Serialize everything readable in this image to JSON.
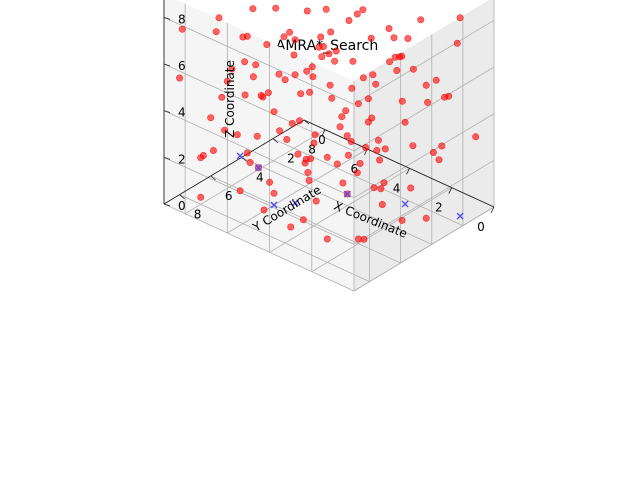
{
  "chart_data": {
    "type": "scatter",
    "title": "AMRA*_Search",
    "xlabel": "X Coordinate",
    "ylabel": "Y Coordinate",
    "zlabel": "Z Coordinate",
    "xlim": [
      0,
      9
    ],
    "ylim": [
      0,
      9
    ],
    "zlim": [
      0,
      9
    ],
    "xticks": [
      "0",
      "2",
      "4",
      "6",
      "8"
    ],
    "yticks": [
      "0",
      "2",
      "4",
      "6",
      "8"
    ],
    "zticks": [
      "0",
      "2",
      "4",
      "6",
      "8"
    ],
    "grid": true,
    "series": [
      {
        "marker": "circle",
        "color": "#ff0000",
        "points": [
          [
            1.0,
            1.0,
            7.0
          ],
          [
            2.0,
            1.0,
            5.0
          ],
          [
            3.0,
            0.5,
            8.5
          ],
          [
            4.0,
            1.0,
            6.0
          ],
          [
            5.0,
            1.0,
            4.0
          ],
          [
            6.0,
            1.0,
            3.0
          ],
          [
            7.0,
            1.0,
            5.0
          ],
          [
            8.0,
            1.0,
            2.0
          ],
          [
            1.0,
            2.0,
            3.0
          ],
          [
            2.0,
            2.0,
            8.0
          ],
          [
            3.0,
            2.0,
            6.0
          ],
          [
            4.0,
            2.0,
            2.0
          ],
          [
            5.0,
            2.0,
            7.0
          ],
          [
            6.0,
            2.0,
            5.0
          ],
          [
            7.0,
            2.0,
            1.0
          ],
          [
            8.0,
            2.0,
            4.0
          ],
          [
            1.0,
            3.0,
            6.0
          ],
          [
            2.0,
            3.0,
            4.0
          ],
          [
            3.0,
            3.0,
            1.0
          ],
          [
            4.0,
            3.0,
            8.0
          ],
          [
            5.0,
            3.0,
            3.0
          ],
          [
            6.0,
            3.0,
            6.0
          ],
          [
            7.0,
            3.0,
            2.0
          ],
          [
            8.0,
            3.0,
            7.0
          ],
          [
            1.0,
            4.0,
            2.0
          ],
          [
            2.0,
            4.0,
            7.0
          ],
          [
            3.0,
            4.0,
            5.0
          ],
          [
            4.0,
            4.0,
            3.0
          ],
          [
            5.0,
            4.0,
            8.0
          ],
          [
            6.0,
            4.0,
            1.0
          ],
          [
            7.0,
            4.0,
            6.0
          ],
          [
            8.0,
            4.0,
            3.0
          ],
          [
            1.0,
            5.0,
            8.0
          ],
          [
            2.0,
            5.0,
            2.0
          ],
          [
            3.0,
            5.0,
            7.0
          ],
          [
            4.0,
            5.0,
            5.0
          ],
          [
            5.0,
            5.0,
            2.0
          ],
          [
            6.0,
            5.0,
            7.0
          ],
          [
            7.0,
            5.0,
            4.0
          ],
          [
            8.0,
            5.0,
            1.0
          ],
          [
            1.0,
            6.0,
            4.0
          ],
          [
            2.0,
            6.0,
            6.0
          ],
          [
            3.0,
            6.0,
            3.0
          ],
          [
            4.0,
            6.0,
            1.0
          ],
          [
            5.0,
            6.0,
            6.0
          ],
          [
            6.0,
            6.0,
            4.0
          ],
          [
            7.0,
            6.0,
            8.0
          ],
          [
            8.0,
            6.0,
            5.0
          ],
          [
            1.0,
            7.0,
            1.0
          ],
          [
            2.0,
            7.0,
            3.0
          ],
          [
            3.0,
            7.0,
            8.0
          ],
          [
            4.0,
            7.0,
            6.0
          ],
          [
            5.0,
            7.0,
            4.0
          ],
          [
            6.0,
            7.0,
            2.0
          ],
          [
            7.0,
            7.0,
            3.0
          ],
          [
            8.0,
            7.0,
            7.0
          ],
          [
            1.0,
            8.0,
            5.0
          ],
          [
            2.0,
            8.0,
            1.0
          ],
          [
            3.0,
            8.0,
            4.0
          ],
          [
            4.0,
            8.0,
            7.0
          ],
          [
            5.0,
            8.0,
            1.0
          ],
          [
            6.0,
            8.0,
            8.0
          ],
          [
            7.0,
            8.0,
            5.0
          ],
          [
            8.0,
            8.0,
            2.0
          ],
          [
            0.5,
            0.5,
            3.0
          ],
          [
            0.5,
            2.5,
            5.5
          ],
          [
            0.5,
            4.5,
            7.5
          ],
          [
            0.5,
            6.5,
            2.5
          ],
          [
            0.5,
            8.5,
            6.0
          ],
          [
            2.5,
            0.5,
            1.5
          ],
          [
            2.5,
            2.5,
            4.5
          ],
          [
            2.5,
            4.5,
            8.0
          ],
          [
            2.5,
            6.5,
            5.0
          ],
          [
            2.5,
            8.5,
            3.5
          ],
          [
            4.5,
            0.5,
            7.5
          ],
          [
            4.5,
            2.5,
            1.0
          ],
          [
            4.5,
            4.5,
            6.5
          ],
          [
            4.5,
            6.5,
            3.0
          ],
          [
            4.5,
            8.5,
            8.5
          ],
          [
            6.5,
            0.5,
            5.5
          ],
          [
            6.5,
            2.5,
            8.0
          ],
          [
            6.5,
            4.5,
            2.0
          ],
          [
            6.5,
            6.5,
            6.0
          ],
          [
            6.5,
            8.5,
            4.0
          ],
          [
            8.5,
            0.5,
            2.5
          ],
          [
            8.5,
            2.5,
            6.0
          ],
          [
            8.5,
            4.5,
            4.5
          ],
          [
            8.5,
            6.5,
            1.5
          ],
          [
            8.5,
            8.5,
            7.5
          ],
          [
            1.5,
            1.5,
            2.0
          ],
          [
            1.5,
            3.5,
            8.0
          ],
          [
            1.5,
            5.5,
            4.0
          ],
          [
            1.5,
            7.5,
            6.5
          ],
          [
            3.5,
            1.5,
            5.0
          ],
          [
            3.5,
            3.5,
            2.5
          ],
          [
            3.5,
            5.5,
            7.0
          ],
          [
            3.5,
            7.5,
            1.0
          ],
          [
            5.5,
            1.5,
            8.0
          ],
          [
            5.5,
            3.5,
            6.0
          ],
          [
            5.5,
            5.5,
            3.5
          ],
          [
            5.5,
            7.5,
            5.5
          ],
          [
            7.5,
            1.5,
            3.5
          ],
          [
            7.5,
            3.5,
            7.5
          ],
          [
            7.5,
            5.5,
            1.0
          ],
          [
            7.5,
            7.5,
            8.0
          ],
          [
            0.2,
            4.0,
            6.0
          ],
          [
            0.2,
            7.0,
            3.5
          ],
          [
            9.0,
            3.0,
            0.5
          ],
          [
            9.0,
            6.0,
            2.5
          ],
          [
            6.0,
            9.0,
            6.5
          ],
          [
            3.0,
            9.0,
            1.5
          ],
          [
            5.0,
            0.2,
            0.5
          ],
          [
            7.0,
            0.2,
            7.0
          ],
          [
            2.0,
            0.2,
            4.0
          ],
          [
            4.0,
            4.0,
            0.5
          ],
          [
            6.0,
            6.0,
            0.5
          ],
          [
            2.0,
            6.0,
            0.2
          ],
          [
            8.0,
            8.0,
            0.3
          ],
          [
            5.0,
            2.0,
            0.2
          ],
          [
            1.5,
            8.5,
            8.0
          ],
          [
            7.5,
            8.5,
            2.5
          ],
          [
            4.5,
            1.5,
            4.0
          ],
          [
            3.0,
            7.5,
            4.5
          ],
          [
            6.0,
            3.5,
            4.5
          ],
          [
            2.5,
            5.0,
            6.5
          ],
          [
            7.0,
            6.5,
            4.5
          ],
          [
            8.5,
            1.5,
            8.5
          ],
          [
            0.5,
            1.5,
            8.5
          ],
          [
            4.0,
            9.0,
            3.0
          ],
          [
            5.5,
            4.5,
            1.0
          ],
          [
            6.5,
            7.5,
            1.0
          ],
          [
            1.0,
            3.0,
            0.3
          ],
          [
            2.0,
            2.5,
            2.8
          ],
          [
            3.5,
            6.5,
            8.0
          ],
          [
            8.0,
            5.0,
            6.0
          ],
          [
            7.0,
            2.5,
            6.5
          ],
          [
            3.0,
            4.0,
            4.0
          ],
          [
            5.0,
            6.0,
            7.5
          ],
          [
            9.0,
            8.0,
            5.0
          ],
          [
            0.3,
            5.5,
            1.5
          ],
          [
            4.0,
            0.5,
            5.0
          ],
          [
            6.5,
            5.0,
            5.0
          ],
          [
            2.0,
            8.0,
            4.5
          ],
          [
            8.0,
            2.0,
            7.5
          ],
          [
            5.5,
            8.0,
            6.5
          ],
          [
            3.5,
            2.0,
            7.0
          ],
          [
            1.0,
            6.5,
            6.0
          ]
        ]
      },
      {
        "marker": "x",
        "color": "#4f4ff5",
        "points": [
          [
            0.5,
            1.5,
            0.0
          ],
          [
            2.0,
            3.0,
            0.5
          ],
          [
            4.0,
            4.0,
            0.5
          ],
          [
            5.0,
            6.0,
            0.5
          ],
          [
            6.0,
            6.0,
            0.0
          ],
          [
            6.0,
            7.0,
            2.0
          ],
          [
            6.5,
            7.5,
            2.5
          ]
        ]
      }
    ]
  }
}
